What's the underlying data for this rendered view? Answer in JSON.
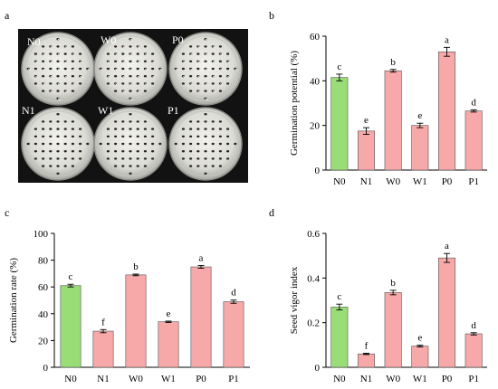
{
  "figure": {
    "panels": [
      "a",
      "b",
      "c",
      "d"
    ],
    "photo": {
      "plate_labels": [
        "N0",
        "W0",
        "P0",
        "N1",
        "W1",
        "P1"
      ]
    }
  },
  "colors": {
    "control": "#99dd77",
    "treatment": "#f7a8a8",
    "edge": "#555555"
  },
  "chart_data": [
    {
      "type": "bar",
      "panel": "b",
      "categories": [
        "N0",
        "N1",
        "W0",
        "W1",
        "P0",
        "P1"
      ],
      "values": [
        41.5,
        17.5,
        44.5,
        20,
        53,
        26.5
      ],
      "errors": [
        1.5,
        1.5,
        0.6,
        1.0,
        2.0,
        0.5
      ],
      "letters": [
        "c",
        "e",
        "b",
        "e",
        "a",
        "d"
      ],
      "ylabel": "Germination potential (%)",
      "ylim": [
        0,
        60
      ],
      "yticks": [
        0,
        20,
        40,
        60
      ],
      "ytick_labels": [
        "0",
        "20",
        "40",
        "60"
      ],
      "grid": false
    },
    {
      "type": "bar",
      "panel": "c",
      "categories": [
        "N0",
        "N1",
        "W0",
        "W1",
        "P0",
        "P1"
      ],
      "values": [
        61,
        27,
        69,
        34,
        75,
        49
      ],
      "errors": [
        1.0,
        1.2,
        0.6,
        0.5,
        1.0,
        1.2
      ],
      "letters": [
        "c",
        "f",
        "b",
        "e",
        "a",
        "d"
      ],
      "ylabel": "Germination rate (%)",
      "ylim": [
        0,
        100
      ],
      "yticks": [
        0,
        20,
        40,
        60,
        80,
        100
      ],
      "ytick_labels": [
        "0",
        "20",
        "40",
        "60",
        "80",
        "100"
      ],
      "grid": false
    },
    {
      "type": "bar",
      "panel": "d",
      "categories": [
        "N0",
        "N1",
        "W0",
        "W1",
        "P0",
        "P1"
      ],
      "values": [
        0.27,
        0.06,
        0.335,
        0.095,
        0.49,
        0.15
      ],
      "errors": [
        0.013,
        0.003,
        0.01,
        0.004,
        0.02,
        0.005
      ],
      "letters": [
        "c",
        "f",
        "b",
        "e",
        "a",
        "d"
      ],
      "ylabel": "Seed vigor  index",
      "ylim": [
        0,
        0.6
      ],
      "yticks": [
        0,
        0.2,
        0.4,
        0.6
      ],
      "ytick_labels": [
        "0",
        "0.2",
        "0.4",
        "0.6"
      ],
      "grid": false
    }
  ]
}
